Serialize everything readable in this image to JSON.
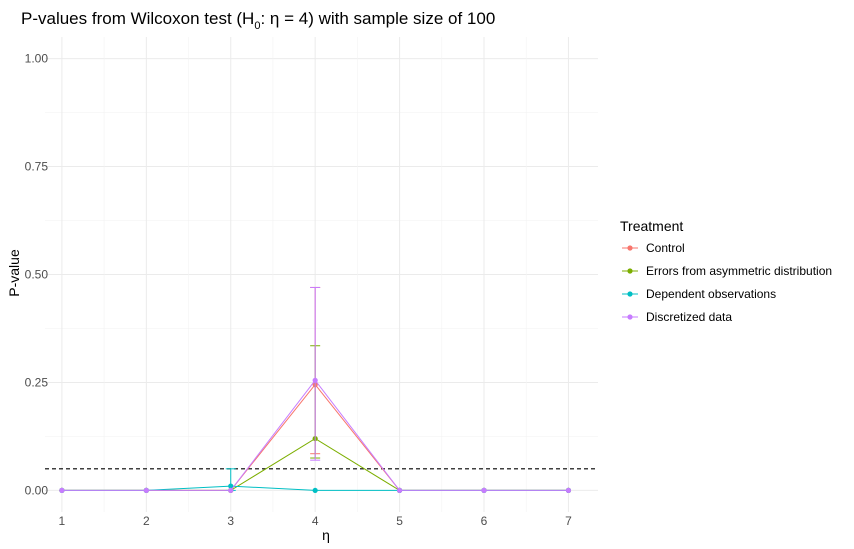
{
  "chart_data": {
    "type": "line",
    "title_prefix": "P-values from Wilcoxon test (H",
    "title_sub": "0",
    "title_suffix": ": η = 4) with sample size of 100",
    "xlabel": "η",
    "ylabel": "P-value",
    "x": [
      1,
      2,
      3,
      4,
      5,
      6,
      7
    ],
    "x_tick_labels": [
      "1",
      "2",
      "3",
      "4",
      "5",
      "6",
      "7"
    ],
    "y_tick_labels": [
      "0.00",
      "0.25",
      "0.50",
      "0.75",
      "1.00"
    ],
    "y_ticks": [
      0,
      0.25,
      0.5,
      0.75,
      1.0
    ],
    "xlim": [
      0.8,
      7.35
    ],
    "ylim": [
      -0.05,
      1.05
    ],
    "grid": true,
    "reference_line": {
      "y": 0.05,
      "style": "dashed",
      "color": "#000000"
    },
    "legend_title": "Treatment",
    "legend_position": "right",
    "series": [
      {
        "name": "Control",
        "color": "#F8766D",
        "values": [
          0,
          0,
          0,
          0.245,
          0,
          0,
          0
        ],
        "error": [
          null,
          null,
          null,
          [
            0.085,
            0.47
          ],
          null,
          null,
          null
        ]
      },
      {
        "name": "Errors from asymmetric distribution",
        "color": "#7CAE00",
        "values": [
          0,
          0,
          0,
          0.12,
          0,
          0,
          0
        ],
        "error": [
          null,
          null,
          null,
          [
            0.075,
            0.335
          ],
          null,
          null,
          null
        ]
      },
      {
        "name": "Dependent observations",
        "color": "#00BFC4",
        "values": [
          0,
          0,
          0.01,
          0,
          0,
          0,
          0
        ],
        "error": [
          null,
          null,
          [
            0,
            0.05
          ],
          null,
          null,
          null,
          null
        ]
      },
      {
        "name": "Discretized data",
        "color": "#C77CFF",
        "values": [
          0,
          0,
          0,
          0.255,
          0,
          0,
          0
        ],
        "error": [
          null,
          null,
          null,
          [
            0.07,
            0.47
          ],
          null,
          null,
          null
        ]
      }
    ]
  }
}
